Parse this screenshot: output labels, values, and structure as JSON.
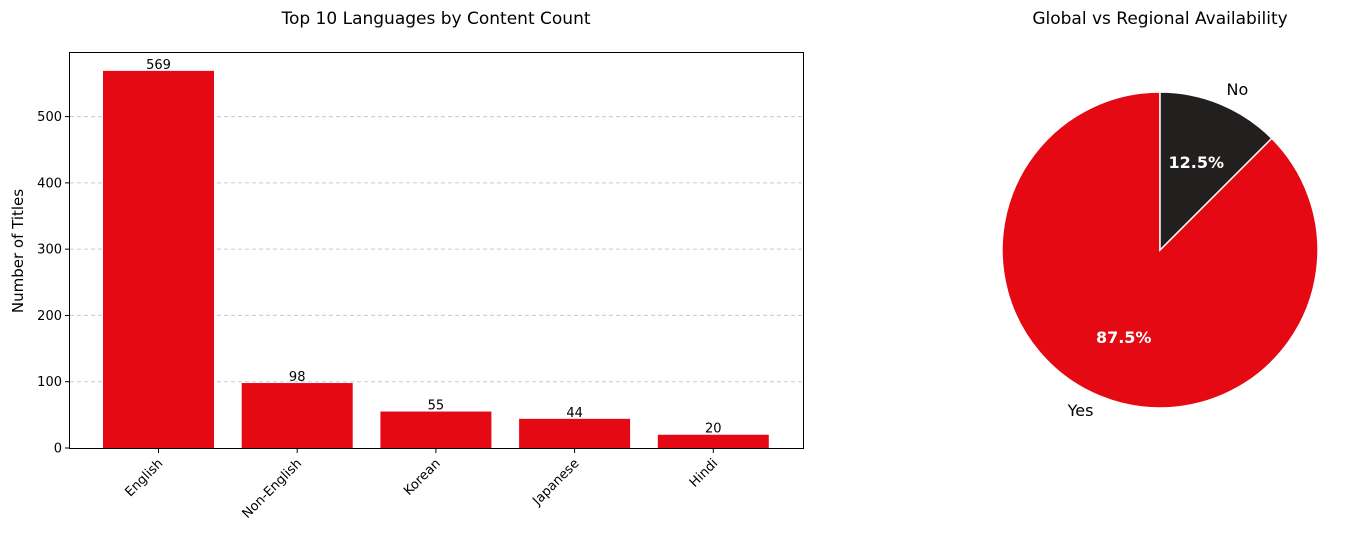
{
  "chart_data": [
    {
      "type": "bar",
      "title": "Top 10 Languages by Content Count",
      "xlabel": "",
      "ylabel": "Number of Titles",
      "categories": [
        "English",
        "Non-English",
        "Korean",
        "Japanese",
        "Hindi"
      ],
      "values": [
        569,
        98,
        55,
        44,
        20
      ],
      "value_labels": [
        "569",
        "98",
        "55",
        "44",
        "20"
      ],
      "ylim": [
        0,
        597.45
      ],
      "yticks": [
        0,
        100,
        200,
        300,
        400,
        500
      ],
      "ytick_labels": [
        "0",
        "100",
        "200",
        "300",
        "400",
        "500"
      ],
      "grid": "y-axis dashed",
      "xtick_rotation": "45",
      "color": "#e50914"
    },
    {
      "type": "pie",
      "title": "Global vs Regional Availability",
      "labels": [
        "Yes",
        "No"
      ],
      "values": [
        87.5,
        12.5
      ],
      "pct_labels": [
        "87.5%",
        "12.5%"
      ],
      "colors": [
        "#e50914",
        "#221f1f"
      ],
      "start_angle": 90,
      "direction": "counterclockwise"
    }
  ]
}
